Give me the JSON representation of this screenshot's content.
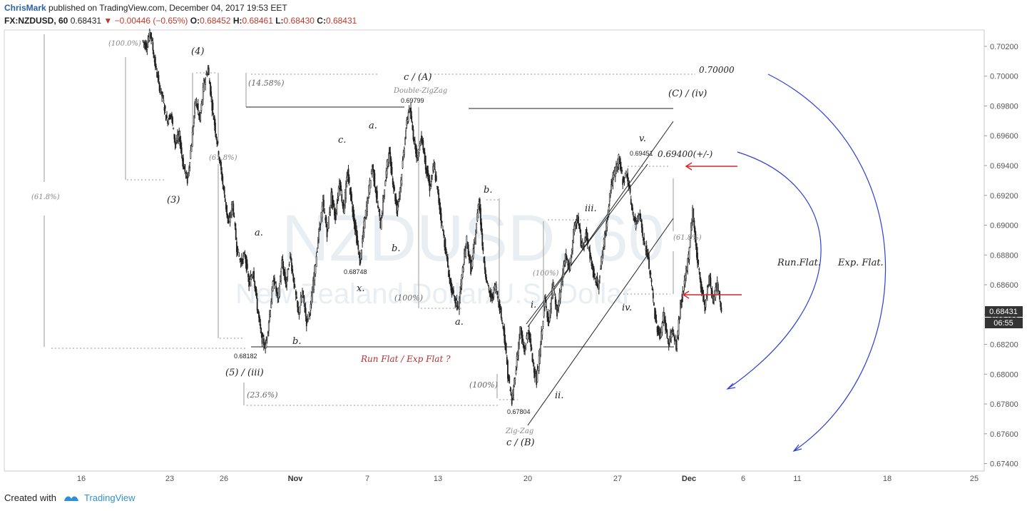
{
  "header": {
    "author": "ChrisMark",
    "published": "published on TradingView.com, December 04, 2017 19:53 EET",
    "symbol": "FX:NZDUSD, 60",
    "last": "0.68431",
    "change": "▼ −0.00446 (−0.65%)",
    "o_label": "O:",
    "o": "0.68452",
    "h_label": "H:",
    "h": "0.68461",
    "l_label": "L:",
    "l": "0.68430",
    "c_label": "C:",
    "c": "0.68431"
  },
  "watermark": {
    "symbol": "NZDUSD, 60",
    "name": "New Zealand Dollar/U.S. Dollar"
  },
  "chart_data": {
    "type": "line",
    "subtype": "candlestick (hourly)",
    "x_ticks": [
      "16",
      "23",
      "26",
      "Nov",
      "7",
      "13",
      "20",
      "27",
      "Dec",
      "6",
      "11",
      "18",
      "25"
    ],
    "y_ticks": [
      "0.70200",
      "0.70000",
      "0.69800",
      "0.69600",
      "0.69400",
      "0.69200",
      "0.69000",
      "0.68800",
      "0.68600",
      "0.68400",
      "0.68200",
      "0.68000",
      "0.67800",
      "0.67600",
      "0.67400"
    ],
    "ylim": [
      0.6735,
      0.7031
    ],
    "price_axis_position": "right",
    "last_price": {
      "value": "0.68431",
      "countdown": "06:55"
    },
    "price_path": [
      [
        0.7024,
        0.7
      ],
      [
        0.702,
        1
      ],
      [
        0.703,
        2
      ],
      [
        0.701,
        3
      ],
      [
        0.6995,
        4
      ],
      [
        0.6985,
        5
      ],
      [
        0.697,
        6
      ],
      [
        0.6975,
        7
      ],
      [
        0.6955,
        8
      ],
      [
        0.696,
        9
      ],
      [
        0.694,
        10
      ],
      [
        0.693,
        11
      ],
      [
        0.6955,
        12
      ],
      [
        0.6985,
        13
      ],
      [
        0.697,
        14
      ],
      [
        0.6995,
        15
      ],
      [
        0.7005,
        16
      ],
      [
        0.698,
        17
      ],
      [
        0.696,
        18
      ],
      [
        0.694,
        19
      ],
      [
        0.692,
        20
      ],
      [
        0.69,
        21
      ],
      [
        0.6915,
        22
      ],
      [
        0.6885,
        23
      ],
      [
        0.6875,
        24
      ],
      [
        0.688,
        25
      ],
      [
        0.686,
        26
      ],
      [
        0.687,
        27
      ],
      [
        0.6845,
        28
      ],
      [
        0.6825,
        29
      ],
      [
        0.6818,
        30
      ],
      [
        0.684,
        31
      ],
      [
        0.6865,
        32
      ],
      [
        0.685,
        33
      ],
      [
        0.6875,
        34
      ],
      [
        0.686,
        35
      ],
      [
        0.688,
        36
      ],
      [
        0.686,
        37
      ],
      [
        0.684,
        38
      ],
      [
        0.6855,
        39
      ],
      [
        0.6835,
        40
      ],
      [
        0.6845,
        41
      ],
      [
        0.687,
        42
      ],
      [
        0.6895,
        43
      ],
      [
        0.6915,
        44
      ],
      [
        0.6895,
        45
      ],
      [
        0.692,
        46
      ],
      [
        0.6905,
        47
      ],
      [
        0.693,
        48
      ],
      [
        0.691,
        49
      ],
      [
        0.6935,
        50
      ],
      [
        0.6915,
        51
      ],
      [
        0.6895,
        52
      ],
      [
        0.6875,
        53
      ],
      [
        0.69,
        54
      ],
      [
        0.692,
        55
      ],
      [
        0.694,
        56
      ],
      [
        0.692,
        57
      ],
      [
        0.69,
        58
      ],
      [
        0.6925,
        59
      ],
      [
        0.695,
        60
      ],
      [
        0.693,
        61
      ],
      [
        0.691,
        62
      ],
      [
        0.693,
        63
      ],
      [
        0.696,
        64
      ],
      [
        0.698,
        65
      ],
      [
        0.696,
        66
      ],
      [
        0.6945,
        67
      ],
      [
        0.696,
        68
      ],
      [
        0.694,
        69
      ],
      [
        0.6925,
        70
      ],
      [
        0.694,
        71
      ],
      [
        0.692,
        72
      ],
      [
        0.69,
        73
      ],
      [
        0.688,
        74
      ],
      [
        0.686,
        75
      ],
      [
        0.685,
        76
      ],
      [
        0.6845,
        77
      ],
      [
        0.687,
        78
      ],
      [
        0.689,
        79
      ],
      [
        0.687,
        80
      ],
      [
        0.689,
        81
      ],
      [
        0.6918,
        82
      ],
      [
        0.688,
        83
      ],
      [
        0.686,
        84
      ],
      [
        0.685,
        85
      ],
      [
        0.686,
        86
      ],
      [
        0.6845,
        87
      ],
      [
        0.683,
        88
      ],
      [
        0.68,
        89
      ],
      [
        0.6781,
        90
      ],
      [
        0.6805,
        91
      ],
      [
        0.683,
        92
      ],
      [
        0.6815,
        93
      ],
      [
        0.683,
        94
      ],
      [
        0.681,
        95
      ],
      [
        0.6795,
        96
      ],
      [
        0.682,
        97
      ],
      [
        0.685,
        98
      ],
      [
        0.6835,
        99
      ],
      [
        0.686,
        100
      ],
      [
        0.684,
        101
      ],
      [
        0.686,
        102
      ],
      [
        0.688,
        103
      ],
      [
        0.687,
        104
      ],
      [
        0.6895,
        105
      ],
      [
        0.6905,
        106
      ],
      [
        0.6885,
        107
      ],
      [
        0.6895,
        108
      ],
      [
        0.688,
        109
      ],
      [
        0.6865,
        110
      ],
      [
        0.686,
        111
      ],
      [
        0.688,
        112
      ],
      [
        0.69,
        113
      ],
      [
        0.6925,
        114
      ],
      [
        0.6935,
        115
      ],
      [
        0.6945,
        116
      ],
      [
        0.693,
        117
      ],
      [
        0.6935,
        118
      ],
      [
        0.6915,
        119
      ],
      [
        0.69,
        120
      ],
      [
        0.691,
        121
      ],
      [
        0.689,
        122
      ],
      [
        0.688,
        123
      ],
      [
        0.686,
        124
      ],
      [
        0.6835,
        125
      ],
      [
        0.6825,
        126
      ],
      [
        0.684,
        127
      ],
      [
        0.682,
        128
      ],
      [
        0.683,
        129
      ],
      [
        0.6818,
        130
      ],
      [
        0.6845,
        131
      ],
      [
        0.686,
        132
      ],
      [
        0.688,
        133
      ],
      [
        0.691,
        134
      ],
      [
        0.688,
        135
      ],
      [
        0.686,
        136
      ],
      [
        0.6845,
        137
      ],
      [
        0.6865,
        138
      ],
      [
        0.685,
        139
      ],
      [
        0.686,
        140
      ],
      [
        0.6843,
        141
      ]
    ],
    "levels_labeled": [
      {
        "label": "0.70000",
        "value": 0.7
      },
      {
        "label": "0.69799",
        "value": 0.69799
      },
      {
        "label": "0.69451",
        "value": 0.69451
      },
      {
        "label": "0.69400(+/-)",
        "value": 0.694
      },
      {
        "label": "0.68748",
        "value": 0.68748
      },
      {
        "label": "0.68182",
        "value": 0.68182
      },
      {
        "label": "0.67804",
        "value": 0.67804
      }
    ]
  },
  "annotations": {
    "wave_labels": [
      "(4)",
      "(3)",
      "(5) / (iii)",
      "a.",
      "b.",
      "c.",
      "a.",
      "b.",
      "x.",
      "c / (A)",
      "a.",
      "b.",
      "c / (B)",
      "i.",
      "ii.",
      "iii.",
      "iv.",
      "v.",
      "(C) / (iv)"
    ],
    "structure": [
      "Double-ZigZag",
      "Zig-Zag"
    ],
    "scenario": "Run Flat / Exp Flat ?",
    "run_flat": "Run.Flat.",
    "exp_flat": "Exp. Flat.",
    "fibs": [
      "(100.0%)",
      "(61.8%)",
      "(61.8%)",
      "(14.58%)",
      "(23.6%)",
      "(100%)",
      "(100%)",
      "(100%)",
      "(61.8%)"
    ]
  },
  "footer": {
    "created": "Created with",
    "brand": "TradingView"
  },
  "colors": {
    "candle": "#222222",
    "accent_blue": "#2962a8",
    "arrow_red": "#d62728",
    "curve_blue": "#2a3fd6",
    "axis": "#cccccc"
  }
}
